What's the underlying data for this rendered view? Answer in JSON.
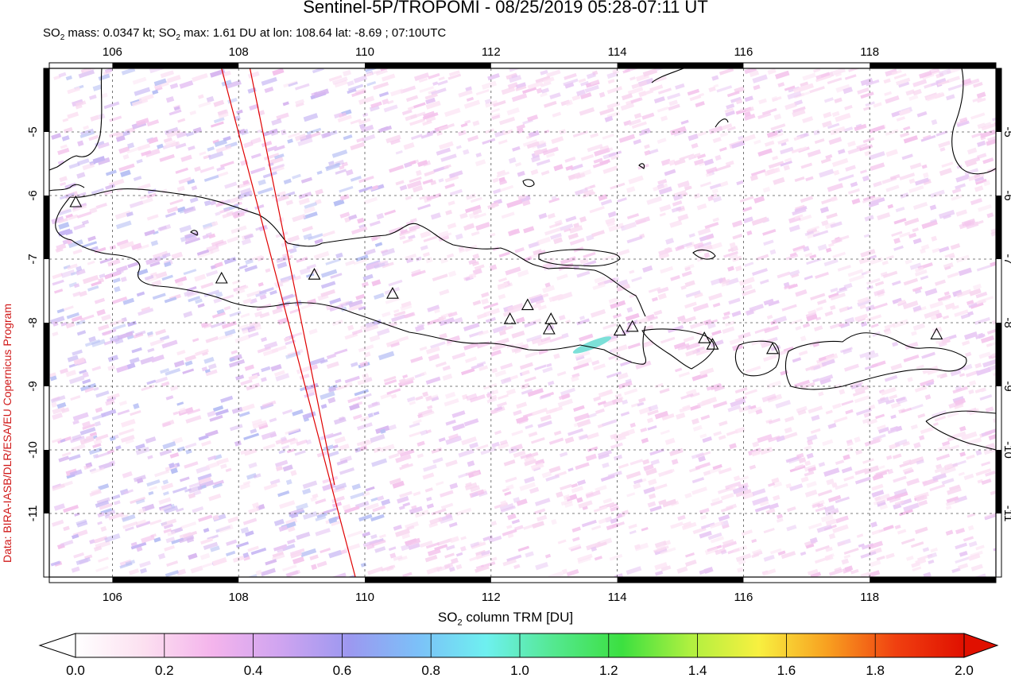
{
  "title": "Sentinel-5P/TROPOMI - 08/25/2019 05:28-07:11 UT",
  "subtitle": {
    "prefix": "SO",
    "sub": "2",
    "mass_text": " mass: 0.0347 kt; SO",
    "sub2": "2",
    "max_text": " max: 1.61 DU at lon: 108.64 lat: -8.69 ; 07:10UTC"
  },
  "side_credit": "Data: BIRA-IASB/DLR/ESA/EU Copernicus Program",
  "map": {
    "lon_range": [
      105.0,
      120.0
    ],
    "lat_range": [
      -12.0,
      -4.0
    ],
    "lon_ticks": [
      "106",
      "108",
      "110",
      "112",
      "114",
      "116",
      "118"
    ],
    "lon_tick_values": [
      106,
      108,
      110,
      112,
      114,
      116,
      118
    ],
    "lat_ticks": [
      "-5",
      "-6",
      "-7",
      "-8",
      "-9",
      "-10",
      "-11"
    ],
    "lat_tick_values": [
      -5,
      -6,
      -7,
      -8,
      -9,
      -10,
      -11
    ],
    "grid": true,
    "volcano_markers": [
      {
        "lon": 105.42,
        "lat": -6.1
      },
      {
        "lon": 107.73,
        "lat": -7.3
      },
      {
        "lon": 109.2,
        "lat": -7.24
      },
      {
        "lon": 110.44,
        "lat": -7.54
      },
      {
        "lon": 112.3,
        "lat": -7.94
      },
      {
        "lon": 112.58,
        "lat": -7.72
      },
      {
        "lon": 112.95,
        "lat": -7.94
      },
      {
        "lon": 112.92,
        "lat": -8.1
      },
      {
        "lon": 114.04,
        "lat": -8.12
      },
      {
        "lon": 114.24,
        "lat": -8.06
      },
      {
        "lon": 115.38,
        "lat": -8.24
      },
      {
        "lon": 115.51,
        "lat": -8.34
      },
      {
        "lon": 116.46,
        "lat": -8.41
      },
      {
        "lon": 119.06,
        "lat": -8.18
      }
    ],
    "orbit_edges": [
      {
        "lon1": 107.73,
        "lat1": -4.0,
        "lon2": 109.85,
        "lat2": -12.0
      },
      {
        "lon1": 108.18,
        "lat1": -4.0,
        "lon2": 109.52,
        "lat2": -10.55
      }
    ],
    "colors": {
      "coast": "#000000",
      "orbit": "#e00000",
      "grid": "#555555"
    }
  },
  "colorbar": {
    "title_prefix": "SO",
    "title_sub": "2",
    "title_suffix": " column TRM [DU]",
    "ticks": [
      "0.0",
      "0.2",
      "0.4",
      "0.6",
      "0.8",
      "1.0",
      "1.2",
      "1.4",
      "1.6",
      "1.8",
      "2.0"
    ],
    "range": [
      0.0,
      2.0
    ],
    "stops": [
      "#ffffff",
      "#fce0f0",
      "#f4b4ec",
      "#cfa4f0",
      "#9c98f0",
      "#7cc0f8",
      "#6ef0f0",
      "#54e890",
      "#3ce040",
      "#b0f040",
      "#f8f040",
      "#f8a020",
      "#f04010",
      "#e01000"
    ]
  }
}
